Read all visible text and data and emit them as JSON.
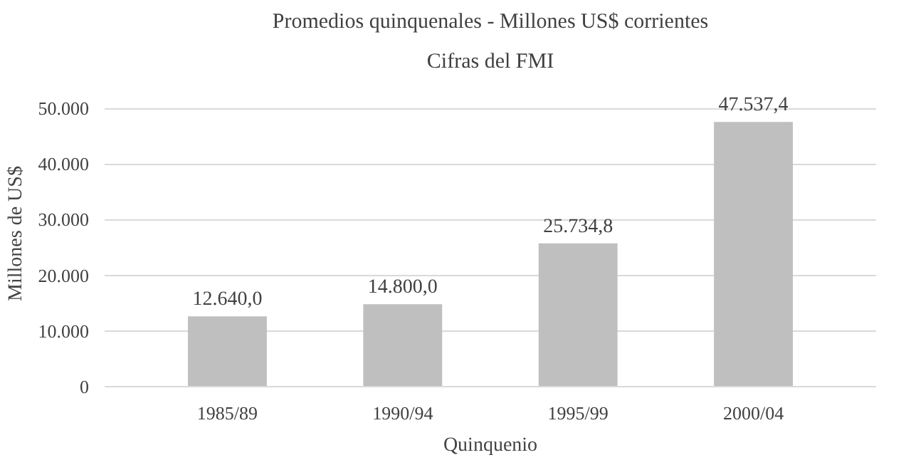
{
  "chart_data": {
    "type": "bar",
    "title": "Promedios quinquenales - Millones US$ corrientes",
    "subtitle": "Cifras del FMI",
    "xlabel": "Quinquenio",
    "ylabel": "Millones de US$",
    "categories": [
      "1985/89",
      "1990/94",
      "1995/99",
      "2000/04"
    ],
    "values": [
      12640.0,
      14800.0,
      25734.8,
      47537.4
    ],
    "color": "#bfbfbf",
    "value_labels": [
      "12.640,0",
      "14.800,0",
      "25.734,8",
      "47.537,4"
    ],
    "ylim": [
      0,
      50000
    ],
    "yticks": [
      {
        "value": 0,
        "label": "0"
      },
      {
        "value": 10000,
        "label": "10.000"
      },
      {
        "value": 20000,
        "label": "20.000"
      },
      {
        "value": 30000,
        "label": "30.000"
      },
      {
        "value": 40000,
        "label": "40.000"
      },
      {
        "value": 50000,
        "label": "50.000"
      }
    ],
    "grid": "y"
  }
}
